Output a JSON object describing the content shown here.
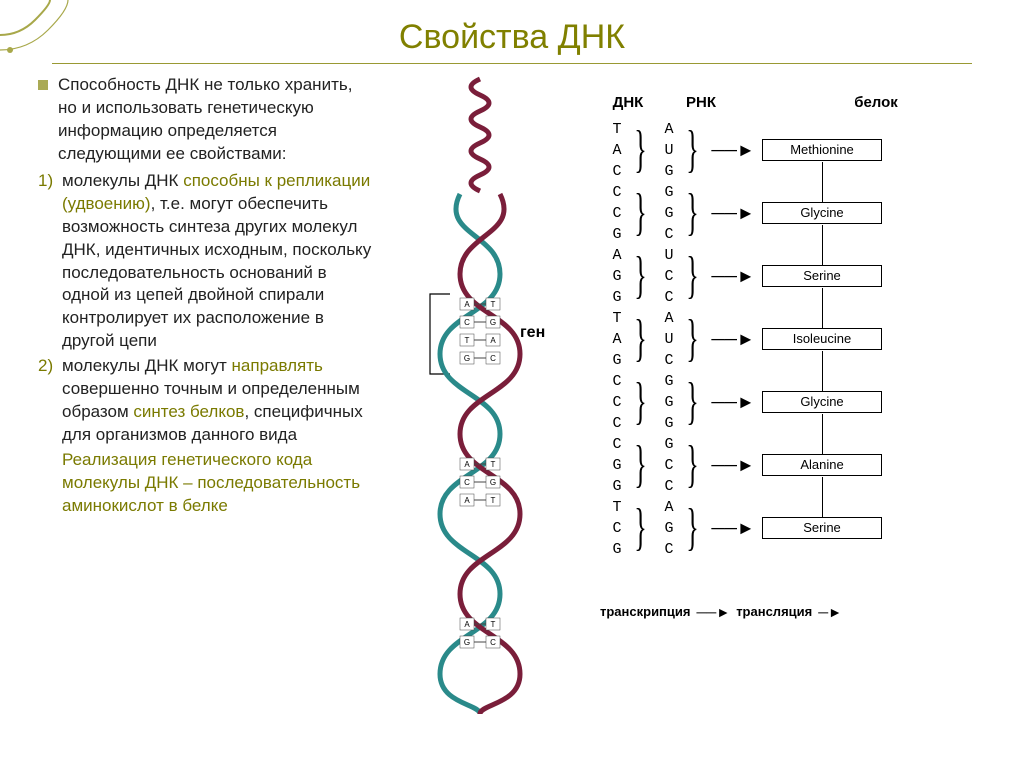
{
  "colors": {
    "title": "#808000",
    "underline": "#999933",
    "bullet": "#aaaa55",
    "olive_text": "#7a7a00",
    "corner_lines": "#a8a84a",
    "dna_strand1": "#2a8a8a",
    "dna_strand2": "#7a1e3a"
  },
  "title": "Свойства ДНК",
  "intro": "Способность ДНК не только хранить, но и использовать генетическую информацию определяется следующими ее свойствами:",
  "item1_pre": "молекулы ДНК ",
  "item1_hl": "способны к репликации (удвоению)",
  "item1_post": ", т.е. могут обеспечить возможность синтеза других молекул ДНК, идентичных исходным, поскольку последовательность оснований в одной из цепей двойной спирали контролирует их расположение в другой цепи",
  "item2_pre": "молекулы ДНК могут ",
  "item2_hl1": "направлять",
  "item2_mid": " совершенно точным и определенным образом ",
  "item2_hl2": "синтез белков",
  "item2_post": ", специфичных для организмов данного вида",
  "realization_pre": "Реализация генетического кода молекулы ДНК – последовательность аминокислот в ",
  "realization_hl": "белке",
  "num1": "1)",
  "num2": "2)",
  "gene_label": "ген",
  "headers": {
    "dna": "ДНК",
    "rna": "РНК",
    "protein": "белок"
  },
  "dna_seq": [
    "T",
    "A",
    "C",
    "C",
    "C",
    "G",
    "A",
    "G",
    "G",
    "T",
    "A",
    "G",
    "C",
    "C",
    "C",
    "C",
    "G",
    "G",
    "T",
    "C",
    "G"
  ],
  "rna_seq": [
    "A",
    "U",
    "G",
    "G",
    "G",
    "C",
    "U",
    "C",
    "C",
    "A",
    "U",
    "C",
    "G",
    "G",
    "G",
    "G",
    "C",
    "C",
    "A",
    "G",
    "C"
  ],
  "proteins": [
    "Methionine",
    "Glycine",
    "Serine",
    "Isoleucine",
    "Glycine",
    "Alanine",
    "Serine"
  ],
  "bottom": {
    "transcription": "транскрипция",
    "translation": "трансляция"
  }
}
